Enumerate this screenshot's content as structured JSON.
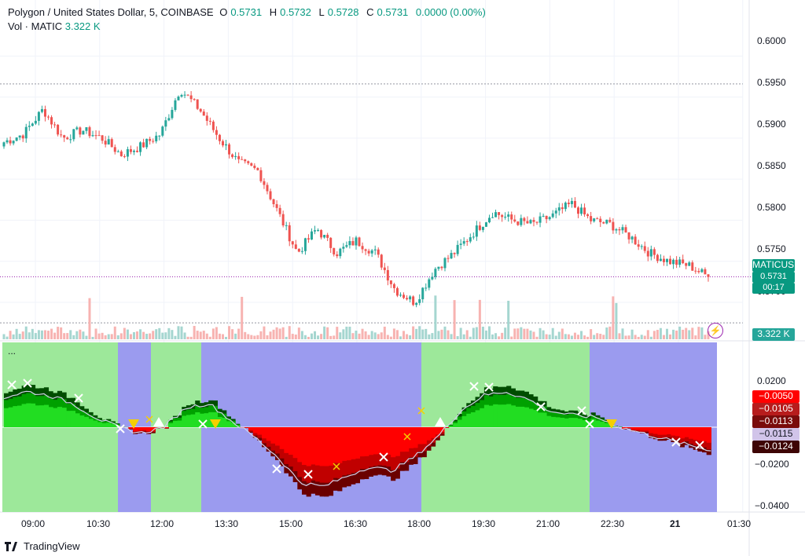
{
  "header": {
    "symbol": "Polygon / United States Dollar, 5, COINBASE",
    "o_label": "O",
    "o_value": "0.5731",
    "h_label": "H",
    "h_value": "0.5732",
    "l_label": "L",
    "l_value": "0.5728",
    "c_label": "C",
    "c_value": "0.5731",
    "change": "0.0000 (0.00%)",
    "vol_label": "Vol · MATIC",
    "vol_value": "3.322 K"
  },
  "price_axis": [
    "0.6000",
    "0.5950",
    "0.5900",
    "0.5850",
    "0.5800",
    "0.5750",
    "0.5700"
  ],
  "price_tag": {
    "label": "MATICUSD",
    "price": "0.5731",
    "countdown": "00:17"
  },
  "volume_tag": "3.322 K",
  "indicator_axis": [
    "0.0200",
    "−0.0200",
    "−0.0400"
  ],
  "indicator_tags": [
    "−0.0050",
    "−0.0105",
    "−0.0113",
    "−0.0115",
    "−0.0124"
  ],
  "indicator_menu": "...",
  "time_axis": [
    "09:00",
    "10:30",
    "12:00",
    "13:30",
    "15:00",
    "16:30",
    "18:00",
    "19:30",
    "21:00",
    "22:30",
    "21",
    "01:30"
  ],
  "brand": "TradingView",
  "colors": {
    "up": "#26a69a",
    "down": "#ef5350",
    "green_bg": "#9de89a",
    "blue_bg": "#9b9bef",
    "tag_green": "#089981"
  },
  "chart_data": {
    "type": "candlestick",
    "title": "Polygon / United States Dollar, 5, COINBASE",
    "ylim": [
      0.5655,
      0.603
    ],
    "x_ticks": [
      "09:00",
      "10:30",
      "12:00",
      "13:30",
      "15:00",
      "16:30",
      "18:00",
      "19:30",
      "21:00",
      "22:30",
      "21",
      "01:30"
    ],
    "close_anchors": [
      0.5895,
      0.5905,
      0.5935,
      0.59,
      0.591,
      0.59,
      0.588,
      0.589,
      0.5905,
      0.596,
      0.5935,
      0.59,
      0.587,
      0.586,
      0.581,
      0.576,
      0.579,
      0.576,
      0.5775,
      0.576,
      0.5715,
      0.57,
      0.574,
      0.576,
      0.5785,
      0.581,
      0.58,
      0.5795,
      0.5805,
      0.582,
      0.58,
      0.5795,
      0.578,
      0.576,
      0.575,
      0.5745,
      0.5731
    ],
    "last_price": 0.5731,
    "current_high_line": 0.5966,
    "low_dotted_line": 0.5675,
    "volume_last": "3.322 K",
    "indicator": {
      "ylim": [
        -0.045,
        0.045
      ],
      "ticks": [
        0.02,
        -0.02,
        -0.04
      ],
      "line_anchors": [
        0.015,
        0.018,
        0.016,
        0.012,
        0.005,
        0.0,
        -0.003,
        0.0,
        0.01,
        0.012,
        0.003,
        -0.005,
        -0.015,
        -0.028,
        -0.03,
        -0.025,
        -0.02,
        -0.022,
        -0.015,
        -0.005,
        0.008,
        0.016,
        0.018,
        0.014,
        0.008,
        0.006,
        0.005,
        0.0,
        -0.003,
        -0.006,
        -0.009,
        -0.0115
      ],
      "last_values": [
        -0.005,
        -0.0105,
        -0.0113,
        -0.0115,
        -0.0124
      ]
    }
  }
}
